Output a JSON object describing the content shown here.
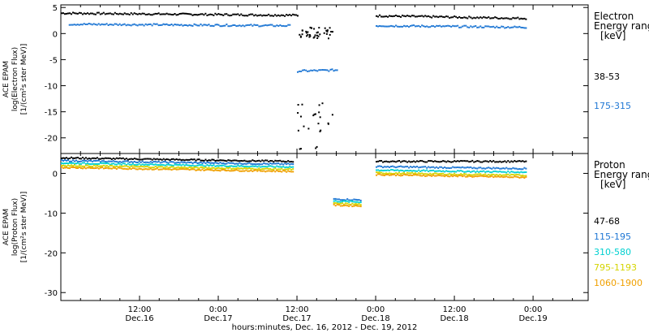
{
  "chart_data": [
    {
      "type": "scatter",
      "panel": "electron",
      "ylabel": [
        "ACE EPAM",
        "log(Electron Flux)",
        "[1/(cm²s ster MeV)]"
      ],
      "ylim": [
        -23,
        5.5
      ],
      "yticks": [
        5,
        0,
        -5,
        -10,
        -15,
        -20
      ],
      "legend_title": [
        "Electron",
        "Energy ranges",
        "[keV]"
      ],
      "series": [
        {
          "name": "38-53",
          "color": "#000000",
          "segments": [
            {
              "x": [
                0,
                1.5
              ],
              "y": [
                3.9,
                3.5
              ]
            },
            {
              "x": [
                2.0,
                2.95
              ],
              "y": [
                3.4,
                2.9
              ]
            }
          ],
          "scatter": {
            "x_range": [
              1.5,
              1.73
            ],
            "y_range": [
              -1.0,
              1.2
            ],
            "extra_y": [
              -15.2,
              -15.8,
              -17.5,
              -18.5,
              -13.5,
              -22
            ]
          }
        },
        {
          "name": "175-315",
          "color": "#1f77d4",
          "segments": [
            {
              "x": [
                0.05,
                1.45
              ],
              "y": [
                1.8,
                1.5
              ]
            },
            {
              "x": [
                1.5,
                1.75
              ],
              "y": [
                -7.2,
                -7.0
              ]
            },
            {
              "x": [
                2.0,
                2.95
              ],
              "y": [
                1.5,
                1.2
              ]
            }
          ]
        }
      ]
    },
    {
      "type": "scatter",
      "panel": "proton",
      "ylabel": [
        "ACE EPAM",
        "log(Proton Flux)",
        "[1/(cm²s ster MeV)]"
      ],
      "ylim": [
        -32,
        5
      ],
      "yticks": [
        0,
        -10,
        -20,
        -30
      ],
      "legend_title": [
        "Proton",
        "Energy ranges",
        "[keV]"
      ],
      "series": [
        {
          "name": "47-68",
          "color": "#000000",
          "segments": [
            {
              "x": [
                0,
                1.47
              ],
              "y": [
                3.9,
                3.0
              ]
            },
            {
              "x": [
                2.0,
                2.95
              ],
              "y": [
                3.0,
                3.0
              ]
            }
          ]
        },
        {
          "name": "115-195",
          "color": "#1f77d4",
          "segments": [
            {
              "x": [
                0,
                1.47
              ],
              "y": [
                3.2,
                2.3
              ]
            },
            {
              "x": [
                1.73,
                1.9
              ],
              "y": [
                -6.5,
                -6.7
              ]
            },
            {
              "x": [
                2.0,
                2.95
              ],
              "y": [
                1.7,
                1.2
              ]
            }
          ]
        },
        {
          "name": "310-580",
          "color": "#00d0d0",
          "segments": [
            {
              "x": [
                0,
                1.47
              ],
              "y": [
                2.6,
                1.6
              ]
            },
            {
              "x": [
                1.73,
                1.9
              ],
              "y": [
                -7.0,
                -7.2
              ]
            },
            {
              "x": [
                2.0,
                2.95
              ],
              "y": [
                0.8,
                0.3
              ]
            }
          ]
        },
        {
          "name": "795-1193",
          "color": "#d4d400",
          "segments": [
            {
              "x": [
                0,
                1.47
              ],
              "y": [
                2.0,
                1.0
              ]
            },
            {
              "x": [
                1.73,
                1.9
              ],
              "y": [
                -7.6,
                -7.8
              ]
            },
            {
              "x": [
                2.0,
                2.95
              ],
              "y": [
                0.1,
                -0.5
              ]
            }
          ]
        },
        {
          "name": "1060-1900",
          "color": "#f0a000",
          "segments": [
            {
              "x": [
                0,
                1.47
              ],
              "y": [
                1.5,
                0.5
              ]
            },
            {
              "x": [
                1.73,
                1.9
              ],
              "y": [
                -8.0,
                -8.2
              ]
            },
            {
              "x": [
                2.0,
                2.95
              ],
              "y": [
                -0.3,
                -1.0
              ]
            }
          ]
        }
      ]
    }
  ],
  "x_axis": {
    "ticks": [
      {
        "x": 0.5,
        "time": "12:00",
        "date": "Dec.16"
      },
      {
        "x": 1.0,
        "time": "0:00",
        "date": "Dec.17"
      },
      {
        "x": 1.5,
        "time": "12:00",
        "date": "Dec.17"
      },
      {
        "x": 2.0,
        "time": "0:00",
        "date": "Dec.18"
      },
      {
        "x": 2.5,
        "time": "12:00",
        "date": "Dec.18"
      },
      {
        "x": 3.0,
        "time": "0:00",
        "date": "Dec.19"
      }
    ],
    "xlim": [
      0,
      3.35
    ],
    "label": "hours:minutes, Dec. 16, 2012 - Dec. 19, 2012"
  }
}
